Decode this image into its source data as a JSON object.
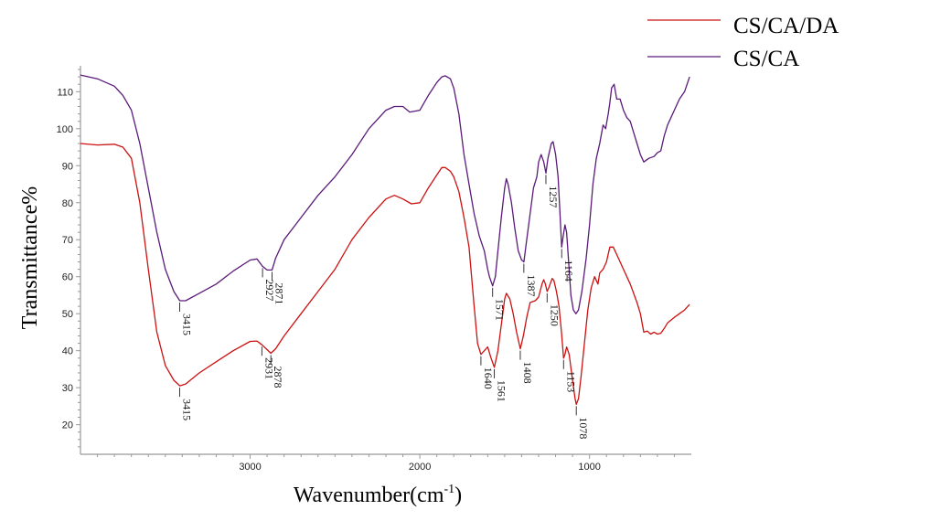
{
  "chart_data": {
    "type": "line",
    "xlabel": "Wavenumber(cm",
    "xlabel_sup": "-1",
    "xlabel_close": ")",
    "ylabel": "Transmittance%",
    "xlim": [
      4000,
      400
    ],
    "ylim": [
      12,
      117
    ],
    "x_reversed": true,
    "x_ticks": [
      3000,
      2000,
      1000
    ],
    "y_ticks": [
      20,
      30,
      40,
      50,
      60,
      70,
      80,
      90,
      100,
      110
    ],
    "grid": false,
    "legend_position": "top-right",
    "series": [
      {
        "name": "CS/CA/DA",
        "color": "#cc1111",
        "points": [
          [
            4000,
            96
          ],
          [
            3900,
            95.6
          ],
          [
            3800,
            95.8
          ],
          [
            3750,
            95
          ],
          [
            3700,
            92
          ],
          [
            3650,
            80
          ],
          [
            3600,
            62
          ],
          [
            3550,
            45
          ],
          [
            3500,
            36
          ],
          [
            3450,
            32
          ],
          [
            3415,
            30.5
          ],
          [
            3380,
            31
          ],
          [
            3300,
            34
          ],
          [
            3200,
            37
          ],
          [
            3100,
            40
          ],
          [
            3000,
            42.5
          ],
          [
            2960,
            42.6
          ],
          [
            2931,
            41.6
          ],
          [
            2900,
            40.3
          ],
          [
            2878,
            39.3
          ],
          [
            2850,
            40.5
          ],
          [
            2800,
            44
          ],
          [
            2700,
            50
          ],
          [
            2600,
            56
          ],
          [
            2500,
            62
          ],
          [
            2400,
            70
          ],
          [
            2300,
            76
          ],
          [
            2200,
            81
          ],
          [
            2150,
            82
          ],
          [
            2100,
            81
          ],
          [
            2050,
            79.7
          ],
          [
            2000,
            80
          ],
          [
            1950,
            84
          ],
          [
            1900,
            87.5
          ],
          [
            1870,
            89.5
          ],
          [
            1850,
            89.5
          ],
          [
            1820,
            88.5
          ],
          [
            1800,
            87
          ],
          [
            1770,
            83
          ],
          [
            1740,
            76
          ],
          [
            1710,
            68
          ],
          [
            1680,
            52
          ],
          [
            1660,
            42
          ],
          [
            1640,
            39
          ],
          [
            1620,
            40
          ],
          [
            1600,
            41
          ],
          [
            1580,
            38
          ],
          [
            1561,
            35.5
          ],
          [
            1540,
            40
          ],
          [
            1520,
            47
          ],
          [
            1500,
            54
          ],
          [
            1490,
            55.5
          ],
          [
            1470,
            54
          ],
          [
            1450,
            50
          ],
          [
            1430,
            45
          ],
          [
            1408,
            40.5
          ],
          [
            1390,
            44
          ],
          [
            1370,
            49
          ],
          [
            1350,
            53
          ],
          [
            1320,
            53.5
          ],
          [
            1300,
            54.5
          ],
          [
            1280,
            58
          ],
          [
            1270,
            59.2
          ],
          [
            1260,
            58
          ],
          [
            1250,
            56
          ],
          [
            1240,
            57
          ],
          [
            1220,
            59.5
          ],
          [
            1210,
            59
          ],
          [
            1195,
            56
          ],
          [
            1180,
            52
          ],
          [
            1165,
            45
          ],
          [
            1153,
            38
          ],
          [
            1145,
            39
          ],
          [
            1135,
            41
          ],
          [
            1120,
            39
          ],
          [
            1100,
            32
          ],
          [
            1085,
            27
          ],
          [
            1078,
            25.5
          ],
          [
            1065,
            27
          ],
          [
            1050,
            33
          ],
          [
            1030,
            42
          ],
          [
            1010,
            51
          ],
          [
            990,
            57
          ],
          [
            970,
            60
          ],
          [
            950,
            58
          ],
          [
            940,
            61
          ],
          [
            920,
            62
          ],
          [
            900,
            64
          ],
          [
            880,
            68
          ],
          [
            860,
            68
          ],
          [
            840,
            66
          ],
          [
            800,
            62
          ],
          [
            760,
            58
          ],
          [
            720,
            53
          ],
          [
            700,
            50
          ],
          [
            680,
            45
          ],
          [
            660,
            45.3
          ],
          [
            640,
            44.5
          ],
          [
            620,
            45
          ],
          [
            600,
            44.5
          ],
          [
            580,
            44.7
          ],
          [
            560,
            46
          ],
          [
            540,
            47.5
          ],
          [
            500,
            49
          ],
          [
            470,
            50
          ],
          [
            440,
            51
          ],
          [
            420,
            52
          ],
          [
            410,
            52.5
          ]
        ]
      },
      {
        "name": "CS/CA",
        "color": "#5a1a7a",
        "points": [
          [
            4000,
            114.5
          ],
          [
            3900,
            113.5
          ],
          [
            3800,
            111.5
          ],
          [
            3750,
            109
          ],
          [
            3700,
            105
          ],
          [
            3650,
            96
          ],
          [
            3600,
            84
          ],
          [
            3550,
            72
          ],
          [
            3500,
            62
          ],
          [
            3450,
            56
          ],
          [
            3415,
            53.5
          ],
          [
            3380,
            53.5
          ],
          [
            3300,
            55.5
          ],
          [
            3200,
            58
          ],
          [
            3100,
            61.5
          ],
          [
            3000,
            64.5
          ],
          [
            2960,
            64.8
          ],
          [
            2927,
            62.8
          ],
          [
            2900,
            61.8
          ],
          [
            2871,
            61.8
          ],
          [
            2850,
            65
          ],
          [
            2800,
            70
          ],
          [
            2700,
            76
          ],
          [
            2600,
            82
          ],
          [
            2500,
            87
          ],
          [
            2400,
            93
          ],
          [
            2300,
            100
          ],
          [
            2200,
            105
          ],
          [
            2150,
            106
          ],
          [
            2100,
            106
          ],
          [
            2060,
            104.5
          ],
          [
            2000,
            105
          ],
          [
            1950,
            109
          ],
          [
            1900,
            112.5
          ],
          [
            1870,
            114
          ],
          [
            1850,
            114.3
          ],
          [
            1820,
            113.5
          ],
          [
            1800,
            111
          ],
          [
            1770,
            104
          ],
          [
            1740,
            93
          ],
          [
            1710,
            85
          ],
          [
            1680,
            77
          ],
          [
            1650,
            71
          ],
          [
            1620,
            67
          ],
          [
            1600,
            62
          ],
          [
            1590,
            60
          ],
          [
            1571,
            57.5
          ],
          [
            1555,
            60
          ],
          [
            1540,
            67
          ],
          [
            1520,
            76
          ],
          [
            1500,
            84
          ],
          [
            1490,
            86.5
          ],
          [
            1480,
            85
          ],
          [
            1460,
            80
          ],
          [
            1440,
            73
          ],
          [
            1420,
            67
          ],
          [
            1400,
            64.5
          ],
          [
            1387,
            64
          ],
          [
            1370,
            70
          ],
          [
            1350,
            77
          ],
          [
            1330,
            84
          ],
          [
            1310,
            87
          ],
          [
            1300,
            91
          ],
          [
            1285,
            93
          ],
          [
            1270,
            91
          ],
          [
            1257,
            88
          ],
          [
            1245,
            92
          ],
          [
            1225,
            96
          ],
          [
            1215,
            96.5
          ],
          [
            1200,
            93
          ],
          [
            1185,
            87
          ],
          [
            1175,
            78
          ],
          [
            1164,
            68
          ],
          [
            1155,
            71
          ],
          [
            1145,
            74
          ],
          [
            1135,
            72
          ],
          [
            1120,
            62
          ],
          [
            1110,
            55
          ],
          [
            1095,
            51
          ],
          [
            1080,
            50
          ],
          [
            1065,
            51
          ],
          [
            1045,
            56
          ],
          [
            1020,
            65
          ],
          [
            1000,
            74
          ],
          [
            980,
            85
          ],
          [
            960,
            92
          ],
          [
            940,
            96
          ],
          [
            920,
            101
          ],
          [
            905,
            100
          ],
          [
            890,
            104
          ],
          [
            880,
            107
          ],
          [
            870,
            111
          ],
          [
            855,
            112
          ],
          [
            840,
            108
          ],
          [
            820,
            108
          ],
          [
            800,
            105
          ],
          [
            780,
            103
          ],
          [
            760,
            102
          ],
          [
            740,
            99
          ],
          [
            720,
            96
          ],
          [
            700,
            93
          ],
          [
            680,
            91
          ],
          [
            650,
            92
          ],
          [
            620,
            92.5
          ],
          [
            600,
            93.5
          ],
          [
            580,
            94
          ],
          [
            560,
            98
          ],
          [
            540,
            101
          ],
          [
            500,
            105
          ],
          [
            470,
            108
          ],
          [
            440,
            110
          ],
          [
            410,
            114
          ]
        ]
      }
    ],
    "annotations": [
      {
        "label": "3415",
        "series": "CS/CA/DA",
        "x": 3415,
        "y": 30.5
      },
      {
        "label": "2931",
        "series": "CS/CA/DA",
        "x": 2931,
        "y": 41.6
      },
      {
        "label": "2878",
        "series": "CS/CA/DA",
        "x": 2878,
        "y": 39.3
      },
      {
        "label": "1640",
        "series": "CS/CA/DA",
        "x": 1640,
        "y": 39
      },
      {
        "label": "1561",
        "series": "CS/CA/DA",
        "x": 1561,
        "y": 35.5
      },
      {
        "label": "1408",
        "series": "CS/CA/DA",
        "x": 1408,
        "y": 40.5
      },
      {
        "label": "1250",
        "series": "CS/CA/DA",
        "x": 1250,
        "y": 56
      },
      {
        "label": "1153",
        "series": "CS/CA/DA",
        "x": 1153,
        "y": 38
      },
      {
        "label": "1078",
        "series": "CS/CA/DA",
        "x": 1078,
        "y": 25.5
      },
      {
        "label": "3415",
        "series": "CS/CA",
        "x": 3415,
        "y": 53.5
      },
      {
        "label": "2927",
        "series": "CS/CA",
        "x": 2927,
        "y": 62.8
      },
      {
        "label": "2871",
        "series": "CS/CA",
        "x": 2871,
        "y": 61.8
      },
      {
        "label": "1571",
        "series": "CS/CA",
        "x": 1571,
        "y": 57.5
      },
      {
        "label": "1387",
        "series": "CS/CA",
        "x": 1387,
        "y": 64
      },
      {
        "label": "1257",
        "series": "CS/CA",
        "x": 1257,
        "y": 88
      },
      {
        "label": "1164",
        "series": "CS/CA",
        "x": 1164,
        "y": 68
      }
    ]
  }
}
